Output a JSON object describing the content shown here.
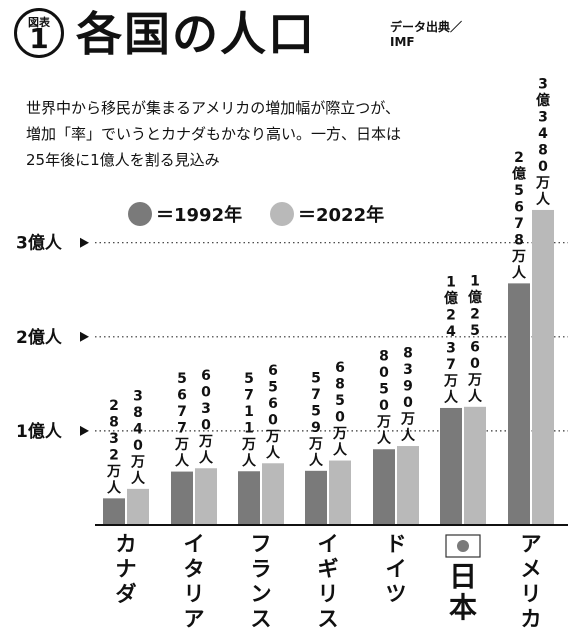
{
  "header": {
    "label": "図表",
    "number": "1",
    "title": "各国の人口",
    "source": [
      "データ出典／",
      "IMF"
    ]
  },
  "description": "世界中から移民が集まるアメリカの増加幅が際立つが、増加「率」でいうとカナダもかなり高い。一方、日本は25年後に1億人を割る見込み",
  "colors": {
    "1992": "#7a7a7a",
    "2022": "#b9b9b9"
  },
  "chart_data": {
    "type": "bar",
    "unit": "万人",
    "legend": [
      {
        "name": "＝1992年"
      },
      {
        "name": "＝2022年"
      }
    ],
    "yticks": [
      {
        "value": 10000,
        "label": "1億人"
      },
      {
        "value": 20000,
        "label": "2億人"
      },
      {
        "value": 30000,
        "label": "3億人"
      }
    ],
    "categories": [
      "カナダ",
      "イタリア",
      "フランス",
      "イギリス",
      "ドイツ",
      "日本",
      "アメリカ"
    ],
    "series": [
      {
        "values": [
          2832,
          5677,
          5711,
          5759,
          8050,
          12437,
          25678
        ],
        "labels": [
          "2832万人",
          "5677万人",
          "5711万人",
          "5759万人",
          "8050万人",
          "1億2437万人",
          "2億5678万人"
        ]
      },
      {
        "values": [
          3840,
          6030,
          6560,
          6850,
          8390,
          12560,
          33480
        ],
        "labels": [
          "3840万人",
          "6030万人",
          "6560万人",
          "6850万人",
          "8390万人",
          "1億2560万人",
          "3億3480万人"
        ]
      }
    ],
    "ylim": [
      0,
      36000
    ]
  }
}
